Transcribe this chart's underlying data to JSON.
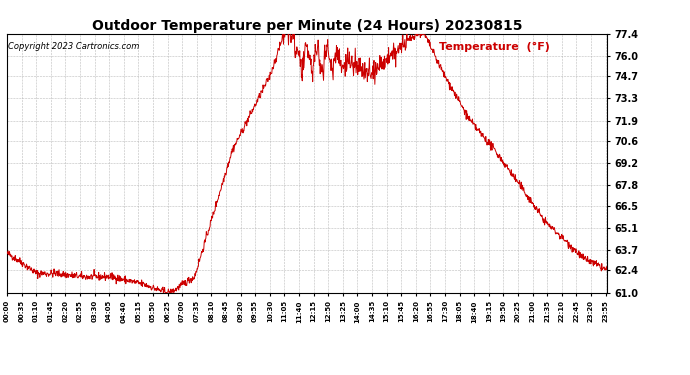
{
  "title": "Outdoor Temperature per Minute (24 Hours) 20230815",
  "copyright_text": "Copyright 2023 Cartronics.com",
  "legend_label": "Temperature  (°F)",
  "line_color": "#cc0000",
  "background_color": "#ffffff",
  "grid_color": "#aaaaaa",
  "yticks": [
    61.0,
    62.4,
    63.7,
    65.1,
    66.5,
    67.8,
    69.2,
    70.6,
    71.9,
    73.3,
    74.7,
    76.0,
    77.4
  ],
  "ylim": [
    61.0,
    77.4
  ],
  "title_fontsize": 10,
  "copyright_fontsize": 6,
  "legend_fontsize": 8,
  "ytick_fontsize": 7,
  "xtick_fontsize": 5
}
